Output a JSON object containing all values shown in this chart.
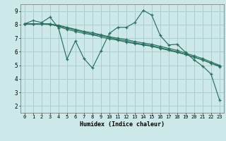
{
  "xlabel": "Humidex (Indice chaleur)",
  "bg_color": "#cce8e8",
  "grid_color": "#aacece",
  "line_color": "#2a7060",
  "xlim": [
    -0.5,
    23.5
  ],
  "ylim": [
    1.5,
    9.5
  ],
  "xticks": [
    0,
    1,
    2,
    3,
    4,
    5,
    6,
    7,
    8,
    9,
    10,
    11,
    12,
    13,
    14,
    15,
    16,
    17,
    18,
    19,
    20,
    21,
    22,
    23
  ],
  "yticks": [
    2,
    3,
    4,
    5,
    6,
    7,
    8,
    9
  ],
  "lines": [
    [
      8.05,
      8.3,
      8.15,
      8.55,
      7.75,
      5.45,
      6.8,
      5.5,
      4.8,
      6.05,
      7.35,
      7.8,
      7.8,
      8.15,
      9.05,
      8.7,
      7.2,
      6.5,
      6.55,
      5.95,
      5.4,
      4.95,
      4.35,
      2.45
    ],
    [
      8.05,
      8.05,
      8.05,
      8.05,
      7.85,
      7.65,
      7.5,
      7.35,
      7.25,
      7.1,
      6.95,
      6.85,
      6.7,
      6.6,
      6.5,
      6.4,
      6.25,
      6.1,
      5.95,
      5.8,
      5.6,
      5.4,
      5.15,
      4.9
    ],
    [
      8.05,
      8.05,
      8.05,
      8.05,
      7.95,
      7.8,
      7.65,
      7.5,
      7.4,
      7.25,
      7.1,
      7.0,
      6.9,
      6.75,
      6.65,
      6.55,
      6.4,
      6.25,
      6.1,
      5.9,
      5.7,
      5.5,
      5.25,
      5.0
    ],
    [
      8.05,
      8.05,
      8.05,
      8.0,
      7.9,
      7.75,
      7.6,
      7.45,
      7.3,
      7.2,
      7.05,
      6.9,
      6.8,
      6.65,
      6.55,
      6.45,
      6.3,
      6.15,
      6.0,
      5.8,
      5.6,
      5.4,
      5.15,
      4.95
    ]
  ]
}
